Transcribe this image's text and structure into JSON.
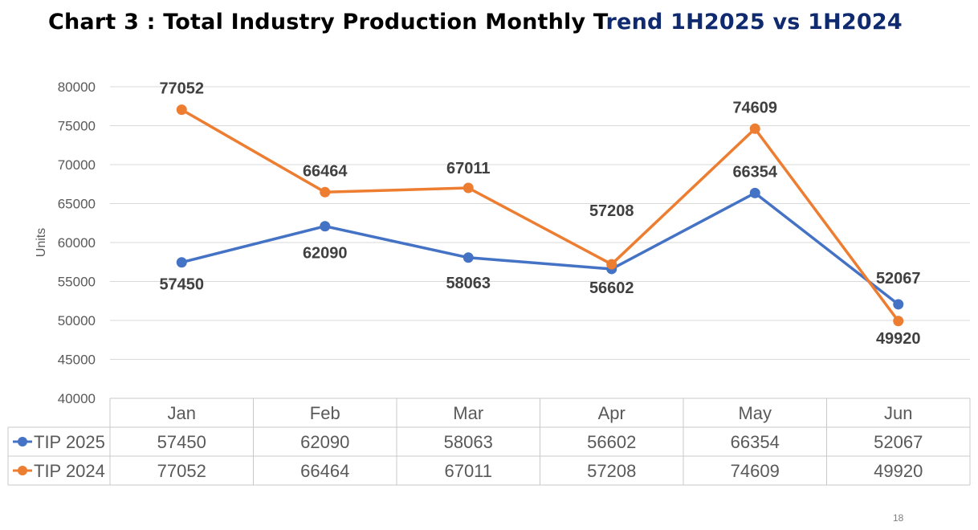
{
  "title": {
    "part1": "Chart 3 : Total Industry Production Monthly T",
    "part2": "rend 1H2025 vs 1H2024"
  },
  "page_number": "18",
  "colors": {
    "tip2025": "#4472c4",
    "tip2024": "#ed7d31",
    "title_dark": "#000000",
    "title_navy": "#0f2a6e",
    "grid": "#d9d9d9",
    "axis_text": "#595959",
    "label_text": "#404040"
  },
  "chart_data": {
    "type": "line",
    "title": "Chart 3 : Total Industry Production Monthly Trend 1H2025 vs 1H2024",
    "categories": [
      "Jan",
      "Feb",
      "Mar",
      "Apr",
      "May",
      "Jun"
    ],
    "ylabel": "Units",
    "xlabel": "",
    "ylim": [
      40000,
      80000
    ],
    "yticks": [
      40000,
      45000,
      50000,
      55000,
      60000,
      65000,
      70000,
      75000,
      80000
    ],
    "grid": true,
    "legend": "data-table",
    "series": [
      {
        "name": "TIP 2025",
        "color": "#4472c4",
        "values": [
          57450,
          62090,
          58063,
          56602,
          66354,
          52067
        ]
      },
      {
        "name": "TIP 2024",
        "color": "#ed7d31",
        "values": [
          77052,
          66464,
          67011,
          57208,
          74609,
          49920
        ]
      }
    ]
  }
}
